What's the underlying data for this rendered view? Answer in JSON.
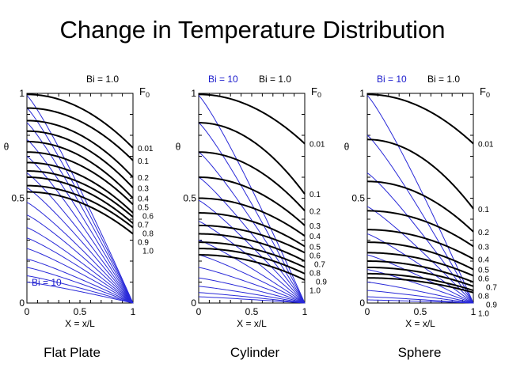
{
  "title": "Change in Temperature Distribution",
  "colors": {
    "bi10": "#2a2ad8",
    "bi1": "#000000",
    "bi10_label": "#1a1acc"
  },
  "chart_data": [
    {
      "type": "line",
      "geometry": "Flat Plate",
      "caption": "Flat Plate",
      "xlabel": "X = x/L",
      "ylabel": "θ",
      "xlim": [
        0,
        1
      ],
      "ylim": [
        0,
        1
      ],
      "xticks": [
        "0",
        "0.5",
        "1"
      ],
      "yticks": [
        "0",
        "0.5",
        "1"
      ],
      "fo_header": "F",
      "fo_sub": "0",
      "legend": {
        "bi1": "Bi = 1.0",
        "bi10": "Bi = 10"
      },
      "bi10_label_position": "bottom-left",
      "series_bi1": [
        {
          "Fo": "0.01",
          "theta_center": 0.995,
          "theta_surface": 0.74
        },
        {
          "Fo": "0.1",
          "theta_center": 0.93,
          "theta_surface": 0.68
        },
        {
          "Fo": "0.2",
          "theta_center": 0.87,
          "theta_surface": 0.6
        },
        {
          "Fo": "0.3",
          "theta_center": 0.82,
          "theta_surface": 0.55
        },
        {
          "Fo": "0.4",
          "theta_center": 0.77,
          "theta_surface": 0.5
        },
        {
          "Fo": "0.5",
          "theta_center": 0.72,
          "theta_surface": 0.47
        },
        {
          "Fo": "0.6",
          "theta_center": 0.67,
          "theta_surface": 0.43
        },
        {
          "Fo": "0.7",
          "theta_center": 0.63,
          "theta_surface": 0.41
        },
        {
          "Fo": "0.8",
          "theta_center": 0.6,
          "theta_surface": 0.38
        },
        {
          "Fo": "0.9",
          "theta_center": 0.56,
          "theta_surface": 0.36
        },
        {
          "Fo": "1.0",
          "theta_center": 0.53,
          "theta_surface": 0.33
        }
      ],
      "series_bi10": [
        {
          "theta_center": 0.99,
          "theta_surface": 0.0
        },
        {
          "theta_center": 0.93,
          "theta_surface": 0.0
        },
        {
          "theta_center": 0.86,
          "theta_surface": 0.0
        },
        {
          "theta_center": 0.78,
          "theta_surface": 0.0
        },
        {
          "theta_center": 0.7,
          "theta_surface": 0.0
        },
        {
          "theta_center": 0.62,
          "theta_surface": 0.0
        },
        {
          "theta_center": 0.55,
          "theta_surface": 0.0
        },
        {
          "theta_center": 0.48,
          "theta_surface": 0.0
        },
        {
          "theta_center": 0.42,
          "theta_surface": 0.0
        },
        {
          "theta_center": 0.36,
          "theta_surface": 0.0
        },
        {
          "theta_center": 0.31,
          "theta_surface": 0.0
        },
        {
          "theta_center": 0.26,
          "theta_surface": 0.0
        },
        {
          "theta_center": 0.21,
          "theta_surface": 0.0
        },
        {
          "theta_center": 0.17,
          "theta_surface": 0.0
        },
        {
          "theta_center": 0.13,
          "theta_surface": 0.0
        },
        {
          "theta_center": 0.1,
          "theta_surface": 0.0
        }
      ]
    },
    {
      "type": "line",
      "geometry": "Cylinder",
      "caption": "Cylinder",
      "xlabel": "X = x/L",
      "ylabel": "θ",
      "xlim": [
        0,
        1
      ],
      "ylim": [
        0,
        1
      ],
      "xticks": [
        "0",
        "0.5",
        "1"
      ],
      "yticks": [
        "0",
        "0.5",
        "1"
      ],
      "fo_header": "F",
      "fo_sub": "0",
      "legend": {
        "bi1": "Bi = 1.0",
        "bi10": "Bi = 10"
      },
      "bi10_label_position": "top",
      "series_bi1": [
        {
          "Fo": "0.01",
          "theta_center": 0.995,
          "theta_surface": 0.76
        },
        {
          "Fo": "0.1",
          "theta_center": 0.86,
          "theta_surface": 0.52
        },
        {
          "Fo": "0.2",
          "theta_center": 0.72,
          "theta_surface": 0.44
        },
        {
          "Fo": "0.3",
          "theta_center": 0.6,
          "theta_surface": 0.37
        },
        {
          "Fo": "0.4",
          "theta_center": 0.5,
          "theta_surface": 0.32
        },
        {
          "Fo": "0.5",
          "theta_center": 0.43,
          "theta_surface": 0.27
        },
        {
          "Fo": "0.6",
          "theta_center": 0.37,
          "theta_surface": 0.24
        },
        {
          "Fo": "0.7",
          "theta_center": 0.33,
          "theta_surface": 0.2
        },
        {
          "Fo": "0.8",
          "theta_center": 0.29,
          "theta_surface": 0.17
        },
        {
          "Fo": "0.9",
          "theta_center": 0.26,
          "theta_surface": 0.14
        },
        {
          "Fo": "1.0",
          "theta_center": 0.23,
          "theta_surface": 0.11
        }
      ],
      "series_bi10": [
        {
          "theta_center": 0.99,
          "theta_surface": 0.0
        },
        {
          "theta_center": 0.86,
          "theta_surface": 0.0
        },
        {
          "theta_center": 0.72,
          "theta_surface": 0.0
        },
        {
          "theta_center": 0.6,
          "theta_surface": 0.0
        },
        {
          "theta_center": 0.49,
          "theta_surface": 0.0
        },
        {
          "theta_center": 0.39,
          "theta_surface": 0.0
        },
        {
          "theta_center": 0.3,
          "theta_surface": 0.0
        },
        {
          "theta_center": 0.23,
          "theta_surface": 0.0
        },
        {
          "theta_center": 0.17,
          "theta_surface": 0.0
        },
        {
          "theta_center": 0.12,
          "theta_surface": 0.0
        },
        {
          "theta_center": 0.08,
          "theta_surface": 0.0
        },
        {
          "theta_center": 0.05,
          "theta_surface": 0.0
        },
        {
          "theta_center": 0.03,
          "theta_surface": 0.0
        }
      ]
    },
    {
      "type": "line",
      "geometry": "Sphere",
      "caption": "Sphere",
      "xlabel": "X = x/L",
      "ylabel": "θ",
      "xlim": [
        0,
        1
      ],
      "ylim": [
        0,
        1
      ],
      "xticks": [
        "0",
        "0.5",
        "1"
      ],
      "yticks": [
        "0",
        "0.5",
        "1"
      ],
      "fo_header": "F",
      "fo_sub": "0",
      "legend": {
        "bi1": "Bi = 1.0",
        "bi10": "Bi = 10"
      },
      "bi10_label_position": "top",
      "series_bi1": [
        {
          "Fo": "0.01",
          "theta_center": 0.995,
          "theta_surface": 0.76
        },
        {
          "Fo": "0.1",
          "theta_center": 0.78,
          "theta_surface": 0.45
        },
        {
          "Fo": "0.2",
          "theta_center": 0.58,
          "theta_surface": 0.34
        },
        {
          "Fo": "0.3",
          "theta_center": 0.44,
          "theta_surface": 0.27
        },
        {
          "Fo": "0.4",
          "theta_center": 0.35,
          "theta_surface": 0.21
        },
        {
          "Fo": "0.5",
          "theta_center": 0.29,
          "theta_surface": 0.16
        },
        {
          "Fo": "0.6",
          "theta_center": 0.24,
          "theta_surface": 0.13
        },
        {
          "Fo": "0.7",
          "theta_center": 0.2,
          "theta_surface": 0.1
        },
        {
          "Fo": "0.8",
          "theta_center": 0.17,
          "theta_surface": 0.08
        },
        {
          "Fo": "0.9",
          "theta_center": 0.14,
          "theta_surface": 0.06
        },
        {
          "Fo": "1.0",
          "theta_center": 0.12,
          "theta_surface": 0.05
        }
      ],
      "series_bi10": [
        {
          "theta_center": 0.99,
          "theta_surface": 0.0
        },
        {
          "theta_center": 0.8,
          "theta_surface": 0.0
        },
        {
          "theta_center": 0.62,
          "theta_surface": 0.0
        },
        {
          "theta_center": 0.46,
          "theta_surface": 0.0
        },
        {
          "theta_center": 0.33,
          "theta_surface": 0.0
        },
        {
          "theta_center": 0.23,
          "theta_surface": 0.0
        },
        {
          "theta_center": 0.16,
          "theta_surface": 0.0
        },
        {
          "theta_center": 0.1,
          "theta_surface": 0.0
        },
        {
          "theta_center": 0.06,
          "theta_surface": 0.0
        },
        {
          "theta_center": 0.03,
          "theta_surface": 0.0
        },
        {
          "theta_center": 0.015,
          "theta_surface": 0.0
        }
      ]
    }
  ]
}
